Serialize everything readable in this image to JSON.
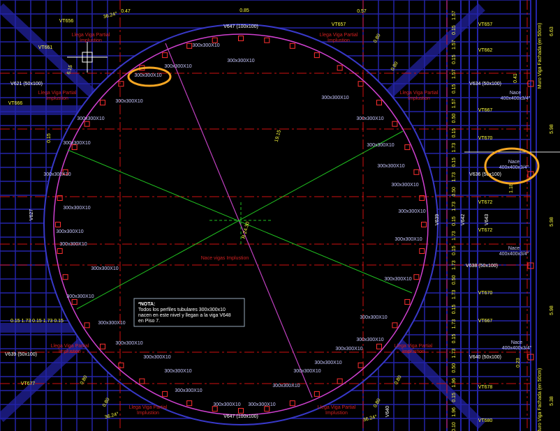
{
  "beams": [
    "V647 (100x100)",
    "V647 (100x100)",
    "V621 (50x100)",
    "V634 (50x100)",
    "V636 (50x100)",
    "V638 (50x100)",
    "V640 (50x100)",
    "V639 (50x100)",
    "V627",
    "V639",
    "V642",
    "V643",
    "V640"
  ],
  "vt_labels": [
    "VT656",
    "VT661",
    "VT666",
    "VT657",
    "VT657",
    "VT662",
    "VT667",
    "VT670",
    "VT672",
    "VT672",
    "VT670",
    "VT667",
    "VT678",
    "VT680",
    "VT677"
  ],
  "tube_labels": [
    "300x300X10",
    "300x300X10",
    "300x300X10",
    "300x300X10",
    "300x300X10",
    "300x300X10",
    "300x300X10",
    "300x300X10",
    "300x300X10",
    "300x300X10",
    "300x300X10",
    "300x300X10",
    "300x300X10",
    "300x300X10",
    "300x300X10",
    "300x300X10",
    "300x300X10",
    "300x300X10",
    "300x300X10",
    "300x300X10",
    "300x300X10",
    "300x300X10",
    "300x300X10",
    "300x300X10",
    "300x300X10",
    "300x300X10",
    "300x300X10",
    "300x300X10",
    "300x300X10",
    "300x300X10",
    "300x300X10",
    "300x300X10",
    "300x300X10",
    "300x300X10"
  ],
  "arrival_labels": [
    "Llega Viga Partial",
    "Llega Viga Partial",
    "Llega Viga Partial",
    "Llega Viga Partial",
    "Llega Viga Partial",
    "Llega Viga Partial",
    "Llega Viga Partial",
    "Llega Viga Partial"
  ],
  "arrival_sub": "Implustion",
  "center_label": "Nace vigas Implustion",
  "nace_labels": [
    "Nace",
    "Nace",
    "Nace",
    "Nace"
  ],
  "nace_sub": "400x400x3/4\"",
  "annotations": [
    "0.85",
    "0.47",
    "36.24°",
    "19.15",
    "R 24.30",
    "0.15",
    "6.15",
    "0.80",
    "0.80",
    "0.80",
    "0.80",
    "36.24°",
    "0.80",
    "0.80",
    "36.24°",
    "0.57",
    "0.41",
    "0.23",
    "1.18"
  ],
  "left_row": "0.15  1.73  0.15  1.73  0.15",
  "right_dims": [
    "1.57",
    "0.15",
    "1.57",
    "0.15",
    "1.57",
    "0.15",
    "1.57",
    "0.50",
    "0.15",
    "1.73",
    "0.15",
    "1.73",
    "0.50",
    "1.73",
    "0.15",
    "1.73",
    "0.15",
    "1.73",
    "0.50",
    "1.73",
    "0.15",
    "1.73",
    "0.15",
    "1.73",
    "0.50",
    "1.96",
    "0.15",
    "1.96",
    "0.10"
  ],
  "bay_dims": [
    "6.63",
    "5.98",
    "5.98",
    "5.98",
    "5.38"
  ],
  "wall_labels": [
    "Muro Viga Fachada (en 50cm)",
    "Muro Viga Fachada (en 50cm)"
  ],
  "note": {
    "title": "*NOTA:",
    "lines": [
      "Todos los perfiles tubulares 300x300x10",
      "nacen en este nivel y llegan a la viga V648",
      "en Piso 7."
    ]
  }
}
